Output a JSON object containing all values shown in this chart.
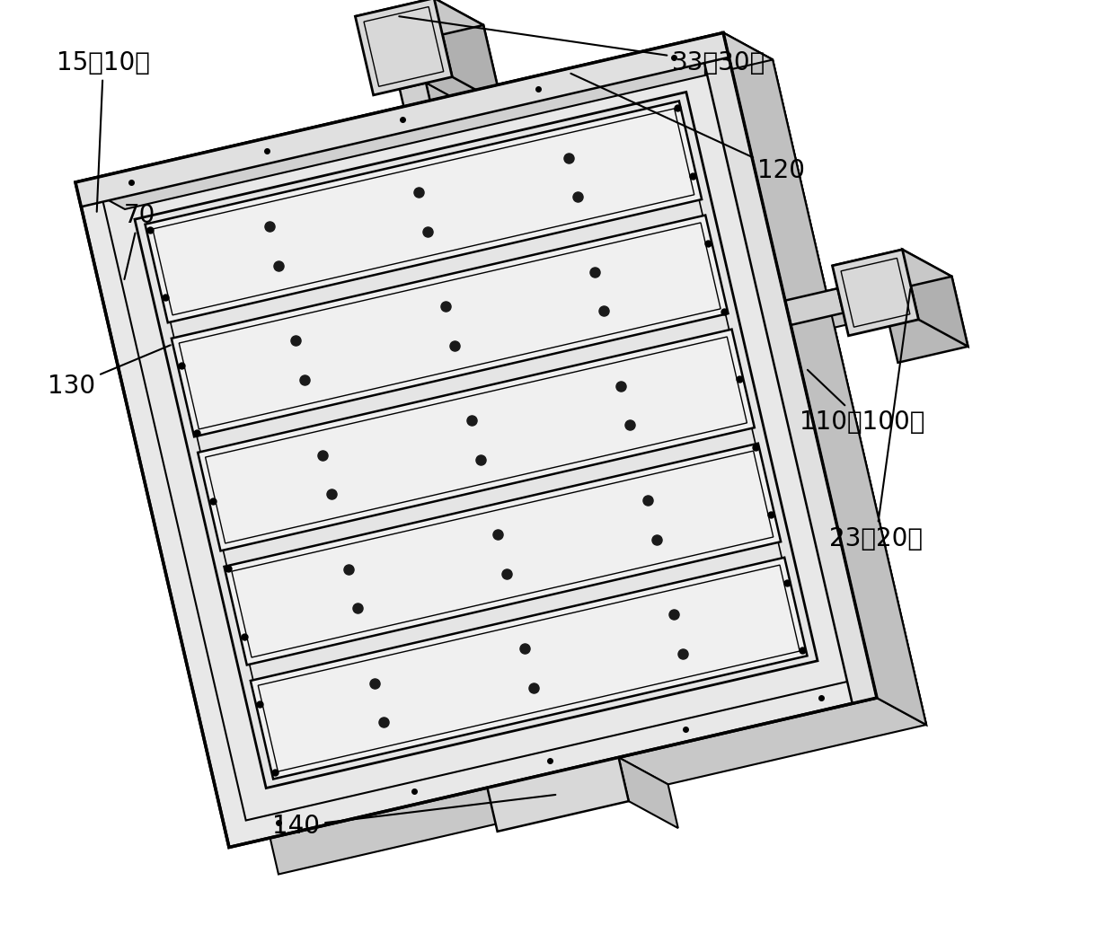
{
  "background_color": "#ffffff",
  "lc": "#000000",
  "fontsize": 20,
  "labels": {
    "15_10": "15（10）",
    "70": "70",
    "130": "130",
    "140": "140",
    "33_30": "33（30）",
    "120": "120",
    "110_100": "110（100）",
    "23_20": "23（20）"
  }
}
